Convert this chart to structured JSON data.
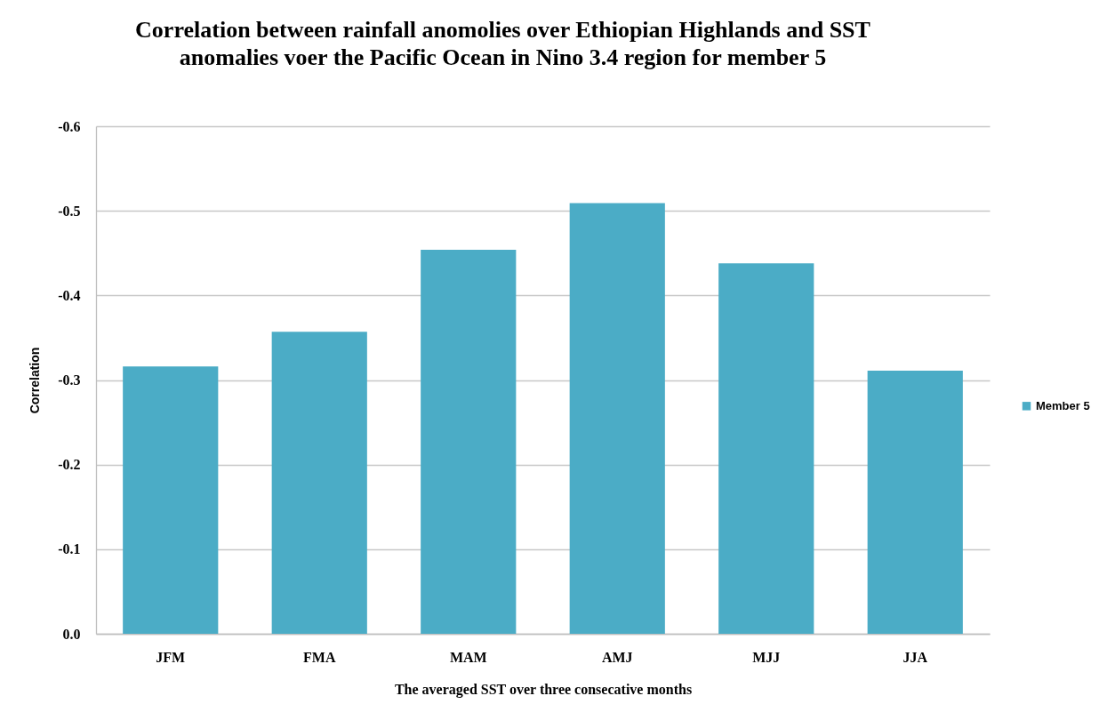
{
  "chart_data": {
    "type": "bar",
    "title": "Correlation between rainfall anomolies over Ethiopian Highlands and SST\nanomalies voer the Pacific Ocean in Nino 3.4 region for member 5",
    "xlabel": "The averaged SST over three consecative months",
    "ylabel": "Correlation",
    "categories": [
      "JFM",
      "FMA",
      "MAM",
      "AMJ",
      "MJJ",
      "JJA"
    ],
    "series": [
      {
        "name": "Member 5",
        "color": "#4bacc6",
        "values": [
          -0.316,
          -0.357,
          -0.454,
          -0.509,
          -0.438,
          -0.311
        ]
      }
    ],
    "ylim": [
      0,
      -0.6
    ],
    "yticks": [
      {
        "value": 0,
        "label": "0.0"
      },
      -0.1,
      -0.2,
      -0.3,
      -0.4,
      -0.5,
      -0.6
    ],
    "grid": "y",
    "legend": "right"
  }
}
